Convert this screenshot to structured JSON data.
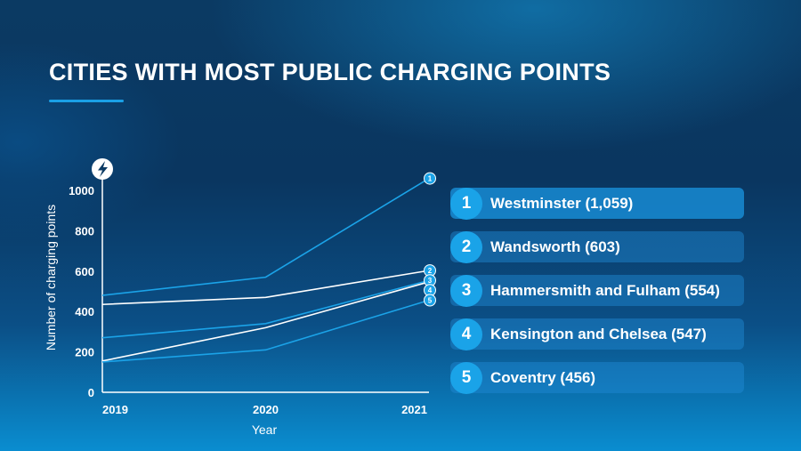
{
  "header": {
    "title": "CITIES WITH MOST PUBLIC CHARGING POINTS"
  },
  "chart_data": {
    "type": "line",
    "title": "CITIES WITH MOST PUBLIC CHARGING POINTS",
    "xlabel": "Year",
    "ylabel": "Number of charging points",
    "x": [
      "2019",
      "2020",
      "2021"
    ],
    "yticks": [
      "0",
      "200",
      "400",
      "600",
      "800",
      "1000"
    ],
    "ylim": [
      0,
      1000
    ],
    "grid": false,
    "series": [
      {
        "rank": "1",
        "name": "Westminster",
        "values": [
          480,
          570,
          1059
        ]
      },
      {
        "rank": "2",
        "name": "Wandsworth",
        "values": [
          435,
          470,
          603
        ]
      },
      {
        "rank": "3",
        "name": "Hammersmith and Fulham",
        "values": [
          270,
          340,
          554
        ]
      },
      {
        "rank": "4",
        "name": "Kensington and Chelsea",
        "values": [
          155,
          320,
          547
        ]
      },
      {
        "rank": "5",
        "name": "Coventry",
        "values": [
          150,
          210,
          456
        ]
      }
    ],
    "colors": {
      "blue": "#1ba3e8",
      "white": "#ffffff"
    },
    "icon": "lightning-bolt-icon"
  },
  "legend": [
    {
      "rank": "1",
      "label": "Westminster (1,059)"
    },
    {
      "rank": "2",
      "label": "Wandsworth (603)"
    },
    {
      "rank": "3",
      "label": "Hammersmith and Fulham (554)"
    },
    {
      "rank": "4",
      "label": "Kensington and Chelsea (547)"
    },
    {
      "rank": "5",
      "label": "Coventry (456)"
    }
  ]
}
